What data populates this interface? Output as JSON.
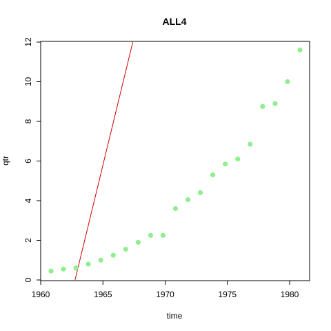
{
  "chart_data": {
    "type": "scatter",
    "title": "ALL4",
    "xlabel": "time",
    "ylabel": "qtr",
    "xlim": [
      1960,
      1981.6
    ],
    "ylim": [
      0,
      12
    ],
    "x_ticks": [
      1960,
      1965,
      1970,
      1975,
      1980
    ],
    "y_ticks": [
      0,
      2,
      4,
      6,
      8,
      10,
      12
    ],
    "grid": false,
    "point_color": "#90EE90",
    "line_color": "#CC0000",
    "points": {
      "x": [
        1960.83,
        1961.83,
        1962.83,
        1963.83,
        1964.83,
        1965.83,
        1966.83,
        1967.83,
        1968.83,
        1969.83,
        1970.83,
        1971.83,
        1972.83,
        1973.83,
        1974.83,
        1975.83,
        1976.83,
        1977.83,
        1978.83,
        1979.83,
        1980.83
      ],
      "y": [
        0.45,
        0.55,
        0.6,
        0.8,
        1.0,
        1.25,
        1.55,
        1.9,
        2.25,
        2.25,
        3.6,
        4.05,
        4.4,
        5.3,
        5.85,
        6.1,
        6.85,
        8.75,
        8.9,
        10.0,
        11.6
      ]
    },
    "line": {
      "x": [
        1962.76,
        1967.4
      ],
      "y": [
        0,
        12
      ]
    }
  }
}
